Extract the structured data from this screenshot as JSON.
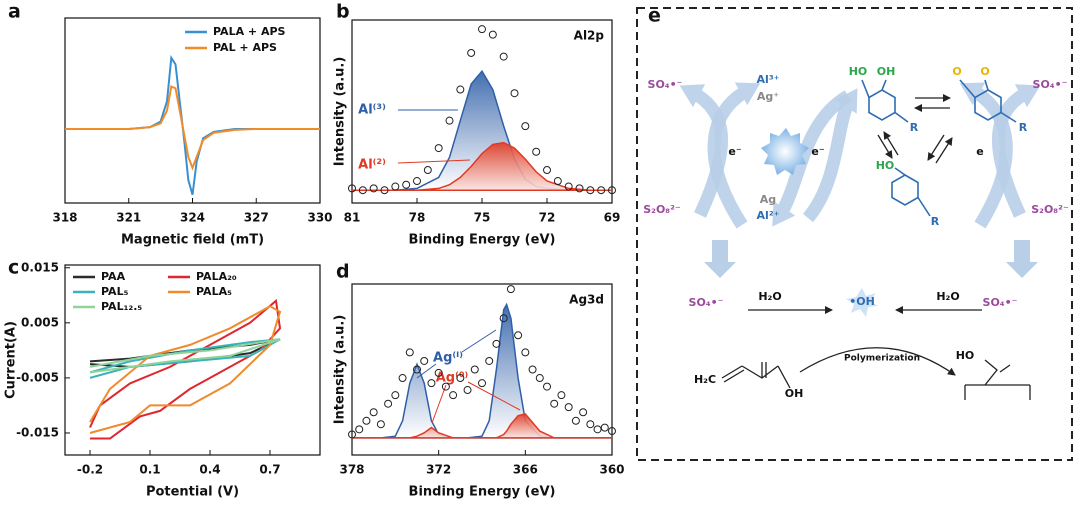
{
  "chart_data": [
    {
      "type": "line",
      "panel": "a",
      "xlabel": "Magnetic field (mT)",
      "x": [
        318,
        319,
        320,
        321,
        322,
        322.5,
        322.8,
        323.0,
        323.2,
        323.4,
        323.6,
        323.8,
        324.0,
        324.2,
        324.5,
        325,
        326,
        327,
        328,
        330
      ],
      "series": [
        {
          "name": "PALA + APS",
          "color": "#3a8fd0",
          "values": [
            0,
            0,
            0,
            0,
            0.02,
            0.08,
            0.3,
            0.77,
            0.7,
            0.3,
            -0.1,
            -0.55,
            -0.71,
            -0.35,
            -0.1,
            -0.03,
            0,
            0,
            0,
            0
          ]
        },
        {
          "name": "PAL + APS",
          "color": "#f28c28",
          "values": [
            0,
            0,
            0,
            0,
            0.02,
            0.06,
            0.2,
            0.46,
            0.44,
            0.2,
            -0.05,
            -0.3,
            -0.42,
            -0.3,
            -0.12,
            -0.04,
            -0.01,
            0,
            0,
            0
          ]
        }
      ],
      "xlim": [
        318,
        330
      ],
      "xticks": [
        318,
        321,
        324,
        327,
        330
      ],
      "ylim": [
        -0.8,
        1.2
      ],
      "legend": "upper right"
    },
    {
      "type": "xps",
      "panel": "b",
      "title": "Al2p",
      "xlabel": "Binding Energy (eV)",
      "ylabel": "Intensity (a.u.)",
      "x": [
        81,
        80,
        79,
        78,
        77,
        76.5,
        76,
        75.5,
        75,
        74.5,
        74,
        73.5,
        73,
        72.5,
        72,
        71,
        70,
        69
      ],
      "series": [
        {
          "name": "Al⁽³⁾",
          "color": "#2f5fa8",
          "values": [
            0.07,
            0.07,
            0.07,
            0.08,
            0.14,
            0.25,
            0.45,
            0.65,
            0.72,
            0.62,
            0.42,
            0.24,
            0.13,
            0.09,
            0.08,
            0.07,
            0.07,
            0.07
          ]
        },
        {
          "name": "Al⁽²⁾",
          "color": "#e03a24",
          "values": [
            0.07,
            0.07,
            0.07,
            0.07,
            0.08,
            0.1,
            0.14,
            0.2,
            0.27,
            0.32,
            0.33,
            0.3,
            0.24,
            0.17,
            0.12,
            0.08,
            0.07,
            0.07
          ]
        }
      ],
      "points": {
        "x": [
          81,
          80.5,
          80,
          79.5,
          79,
          78.5,
          78,
          77.5,
          77,
          76.5,
          76,
          75.5,
          75,
          74.5,
          74,
          73.5,
          73,
          72.5,
          72,
          71.5,
          71,
          70.5,
          70,
          69.5,
          69
        ],
        "values": [
          0.08,
          0.07,
          0.08,
          0.07,
          0.09,
          0.1,
          0.12,
          0.18,
          0.3,
          0.45,
          0.62,
          0.82,
          0.95,
          0.92,
          0.8,
          0.6,
          0.42,
          0.28,
          0.18,
          0.12,
          0.09,
          0.08,
          0.07,
          0.07,
          0.07
        ]
      },
      "xlim": [
        81,
        69
      ],
      "xticks": [
        81,
        78,
        75,
        72,
        69
      ],
      "ylim": [
        0,
        1
      ]
    },
    {
      "type": "line",
      "panel": "c",
      "xlabel": "Potential (V)",
      "ylabel": "Current(A)",
      "series": [
        {
          "name": "PAA",
          "color": "#2b2b2b",
          "x": [
            -0.2,
            0,
            0.3,
            0.6,
            0.75,
            0.6,
            0.3,
            0,
            -0.2
          ],
          "values": [
            -0.002,
            -0.0015,
            0,
            0.001,
            0.002,
            -0.0005,
            -0.002,
            -0.003,
            -0.0025
          ]
        },
        {
          "name": "PALA₂₀",
          "color": "#e0262e",
          "x": [
            -0.2,
            -0.15,
            0,
            0.2,
            0.4,
            0.6,
            0.73,
            0.75,
            0.65,
            0.45,
            0.3,
            0.15,
            0.05,
            -0.1,
            -0.2
          ],
          "values": [
            -0.014,
            -0.01,
            -0.006,
            -0.003,
            0.001,
            0.005,
            0.009,
            0.004,
            0,
            -0.004,
            -0.007,
            -0.011,
            -0.012,
            -0.016,
            -0.016
          ]
        },
        {
          "name": "PAL₅",
          "color": "#3bb3b8",
          "x": [
            -0.2,
            0,
            0.3,
            0.6,
            0.75,
            0.6,
            0.3,
            0,
            -0.2
          ],
          "values": [
            -0.004,
            -0.002,
            0,
            0.0015,
            0.002,
            -0.001,
            -0.002,
            -0.003,
            -0.005
          ]
        },
        {
          "name": "PALA₅",
          "color": "#f08a2c",
          "x": [
            -0.2,
            -0.1,
            0.1,
            0.3,
            0.5,
            0.7,
            0.75,
            0.7,
            0.5,
            0.3,
            0.1,
            0,
            -0.2
          ],
          "values": [
            -0.013,
            -0.007,
            -0.001,
            0.001,
            0.004,
            0.008,
            0.007,
            0.001,
            -0.006,
            -0.01,
            -0.01,
            -0.013,
            -0.015
          ]
        },
        {
          "name": "PAL₁₂.₅",
          "color": "#8fd39a",
          "x": [
            -0.2,
            0.1,
            0.4,
            0.75,
            0.5,
            0.2,
            -0.2
          ],
          "values": [
            -0.003,
            -0.001,
            0,
            0.002,
            -0.001,
            -0.002,
            -0.004
          ]
        }
      ],
      "xlim": [
        -0.325,
        0.95
      ],
      "xticks": [
        -0.2,
        0.1,
        0.4,
        0.7
      ],
      "ylim": [
        -0.019,
        0.0155
      ],
      "yticks": [
        0.015,
        0.005,
        -0.005,
        -0.015
      ],
      "legend": "upper left"
    },
    {
      "type": "xps",
      "panel": "d",
      "title": "Ag3d",
      "xlabel": "Binding Energy (eV)",
      "ylabel": "Intensity (a.u.)",
      "x": [
        378,
        377,
        376,
        375,
        374.5,
        374,
        373.5,
        373,
        372.5,
        372,
        371,
        370,
        369,
        368.5,
        368,
        367.5,
        367.3,
        367,
        366.5,
        366,
        365,
        364,
        362,
        360
      ],
      "series": [
        {
          "name": "Ag⁽ᴵ⁾",
          "color": "#2f5fa8",
          "values": [
            0.1,
            0.1,
            0.1,
            0.11,
            0.2,
            0.42,
            0.53,
            0.42,
            0.2,
            0.12,
            0.1,
            0.1,
            0.11,
            0.2,
            0.5,
            0.85,
            0.88,
            0.8,
            0.45,
            0.2,
            0.11,
            0.1,
            0.1,
            0.1
          ]
        },
        {
          "name": "Ag⁽⁰⁾",
          "color": "#e03a24",
          "values": [
            0.1,
            0.1,
            0.1,
            0.1,
            0.1,
            0.1,
            0.11,
            0.13,
            0.16,
            0.13,
            0.1,
            0.1,
            0.1,
            0.1,
            0.1,
            0.12,
            0.14,
            0.18,
            0.23,
            0.24,
            0.14,
            0.1,
            0.1,
            0.1
          ]
        }
      ],
      "points": {
        "x": [
          378,
          377.5,
          377,
          376.5,
          376,
          375.5,
          375,
          374.5,
          374,
          373.5,
          373,
          372.5,
          372,
          371.5,
          371,
          370.5,
          370,
          369.5,
          369,
          368.5,
          368,
          367.5,
          367,
          366.5,
          366,
          365.5,
          365,
          364.5,
          364,
          363.5,
          363,
          362.5,
          362,
          361.5,
          361,
          360.5,
          360
        ],
        "values": [
          0.12,
          0.15,
          0.2,
          0.25,
          0.18,
          0.3,
          0.35,
          0.45,
          0.6,
          0.5,
          0.55,
          0.42,
          0.48,
          0.4,
          0.35,
          0.45,
          0.38,
          0.5,
          0.42,
          0.55,
          0.65,
          0.8,
          0.97,
          0.7,
          0.6,
          0.5,
          0.45,
          0.4,
          0.3,
          0.35,
          0.28,
          0.2,
          0.25,
          0.18,
          0.15,
          0.16,
          0.14
        ]
      },
      "xlim": [
        378,
        360
      ],
      "xticks": [
        378,
        372,
        366,
        360
      ],
      "ylim": [
        0,
        1
      ]
    }
  ],
  "diagram": {
    "panel": "e",
    "labels": [
      {
        "text": "SO₄•⁻",
        "color": "#9b4a9e"
      },
      {
        "text": "Al³⁺",
        "color": "#2f6db3"
      },
      {
        "text": "Ag⁺",
        "color": "#888888"
      },
      {
        "text": "e⁻",
        "color": "#111111"
      },
      {
        "text": "e⁻",
        "color": "#111111"
      },
      {
        "text": "Ag",
        "color": "#888888"
      },
      {
        "text": "Al²⁺",
        "color": "#2f6db3"
      },
      {
        "text": "S₂O₈²⁻",
        "color": "#9b4a9e"
      },
      {
        "text": "HO",
        "color": "#2aa84a"
      },
      {
        "text": "OH",
        "color": "#2aa84a"
      },
      {
        "text": "O",
        "color": "#e8b400"
      },
      {
        "text": "O",
        "color": "#e8b400"
      },
      {
        "text": "R",
        "color": "#2f6db3"
      },
      {
        "text": "R",
        "color": "#2f6db3"
      },
      {
        "text": "HO",
        "color": "#2aa84a"
      },
      {
        "text": "R",
        "color": "#2f6db3"
      },
      {
        "text": "e",
        "color": "#111111"
      },
      {
        "text": "SO₄•⁻",
        "color": "#9b4a9e"
      },
      {
        "text": "S₂O₈²⁻",
        "color": "#9b4a9e"
      },
      {
        "text": "SO₄•⁻",
        "color": "#9b4a9e"
      },
      {
        "text": "H₂O",
        "color": "#111111"
      },
      {
        "text": "•OH",
        "color": "#2f6db3"
      },
      {
        "text": "H₂O",
        "color": "#111111"
      },
      {
        "text": "SO₄•⁻",
        "color": "#9b4a9e"
      },
      {
        "text": "Polymerization",
        "color": "#111111"
      },
      {
        "text": "H₂C",
        "color": "#111111"
      },
      {
        "text": "OH",
        "color": "#111111"
      },
      {
        "text": "HO",
        "color": "#111111"
      }
    ]
  }
}
